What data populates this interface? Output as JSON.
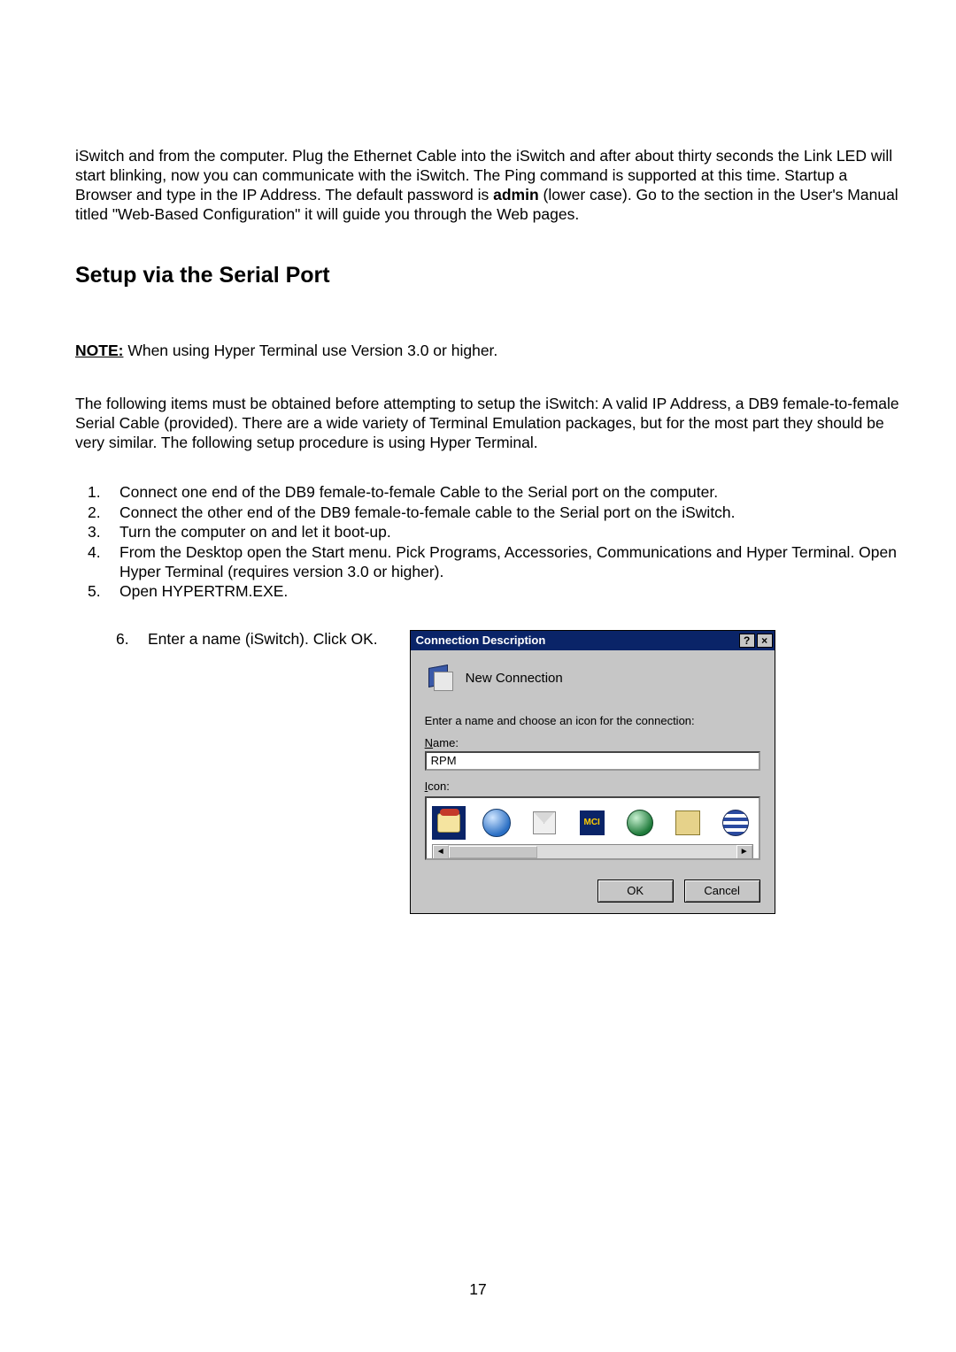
{
  "intro_paragraph": "iSwitch and from the computer.  Plug the Ethernet Cable into the iSwitch and after about thirty seconds the Link LED will start blinking, now you can communicate with the iSwitch.  The Ping command is supported at this time.  Startup a Browser and type in the IP Address.  The default password is ",
  "intro_bold": "admin",
  "intro_tail": " (lower case).  Go to the section in the User's Manual titled \"Web-Based Configuration\" it will guide you through the Web pages.",
  "section_heading": "Setup via the Serial Port",
  "note": {
    "label": "NOTE:",
    "text": "  When using Hyper Terminal use Version 3.0 or higher."
  },
  "pre_steps_paragraph": "The following items must be obtained before attempting to setup the iSwitch:  A valid IP Address, a DB9 female-to-female Serial Cable (provided).  There are a wide variety of Terminal Emulation packages, but for the most part they should be very similar.  The following setup procedure is using Hyper Terminal.",
  "steps": [
    "Connect one end of the DB9 female-to-female Cable to the Serial port on the computer.",
    "Connect the other end of the DB9 female-to-female cable to the Serial port on the iSwitch.",
    "Turn the computer on and let it boot-up.",
    "From the Desktop open the Start menu.  Pick Programs, Accessories, Communications and Hyper Terminal.  Open Hyper Terminal (requires version 3.0 or higher).",
    "Open HYPERTRM.EXE."
  ],
  "step6": {
    "num": "6.",
    "text": "Enter a name (iSwitch).  Click OK."
  },
  "dialog": {
    "title": "Connection Description",
    "help_glyph": "?",
    "close_glyph": "×",
    "header_label": "New Connection",
    "prompt": "Enter a name and choose an icon for the connection:",
    "name_underlined": "N",
    "name_rest": "ame:",
    "name_value": "RPM",
    "icon_underlined": "I",
    "icon_rest": "con:",
    "mci_text": "MCI",
    "ok_label": "OK",
    "cancel_label": "Cancel",
    "scroll_left": "◄",
    "scroll_right": "►"
  },
  "page_number": "17"
}
